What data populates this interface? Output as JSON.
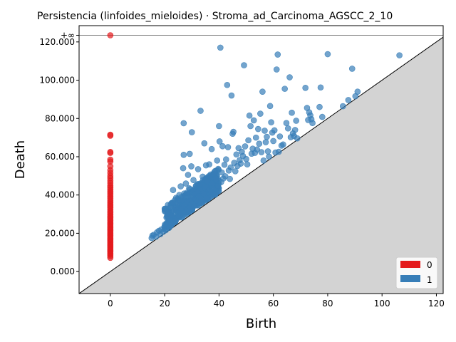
{
  "chart_data": {
    "type": "scatter",
    "title": "Persistencia (linfoides_mieloides) · Stroma_ad_Carcinoma_AGSCC_2_10",
    "xlabel": "Birth",
    "ylabel": "Death",
    "xlim": [
      -11.5,
      122.5
    ],
    "ylim": [
      -11.5,
      128.5
    ],
    "x_ticks": [
      0,
      20,
      40,
      60,
      80,
      100,
      120
    ],
    "x_tick_labels": [
      "0",
      "20",
      "40",
      "60",
      "80",
      "100",
      "120"
    ],
    "y_ticks": [
      0,
      20,
      40,
      60,
      80,
      100,
      120
    ],
    "y_tick_labels": [
      "0.000",
      "20.000",
      "40.000",
      "60.000",
      "80.000",
      "100.000",
      "120.000"
    ],
    "infinity_level": 128.5,
    "infinity_label": "+∞",
    "diagonal": true,
    "legend_position": "bottom-right",
    "series": [
      {
        "name": "0",
        "color": "#e41a1c",
        "points": [
          [
            0,
            7.2
          ],
          [
            0,
            8.1
          ],
          [
            0,
            8.9
          ],
          [
            0,
            9.6
          ],
          [
            0,
            10.3
          ],
          [
            0,
            11.0
          ],
          [
            0,
            11.7
          ],
          [
            0,
            12.4
          ],
          [
            0,
            13.1
          ],
          [
            0,
            13.8
          ],
          [
            0,
            14.5
          ],
          [
            0,
            15.2
          ],
          [
            0,
            15.9
          ],
          [
            0,
            16.6
          ],
          [
            0,
            17.3
          ],
          [
            0,
            18.0
          ],
          [
            0,
            18.7
          ],
          [
            0,
            19.4
          ],
          [
            0,
            20.1
          ],
          [
            0,
            20.8
          ],
          [
            0,
            21.5
          ],
          [
            0,
            22.2
          ],
          [
            0,
            22.9
          ],
          [
            0,
            23.6
          ],
          [
            0,
            24.3
          ],
          [
            0,
            25.0
          ],
          [
            0,
            25.8
          ],
          [
            0,
            26.6
          ],
          [
            0,
            27.4
          ],
          [
            0,
            28.2
          ],
          [
            0,
            29.0
          ],
          [
            0,
            29.8
          ],
          [
            0,
            30.7
          ],
          [
            0,
            31.6
          ],
          [
            0,
            32.5
          ],
          [
            0,
            33.4
          ],
          [
            0,
            34.3
          ],
          [
            0,
            35.2
          ],
          [
            0,
            36.1
          ],
          [
            0,
            37.0
          ],
          [
            0,
            38.0
          ],
          [
            0,
            39.0
          ],
          [
            0,
            40.0
          ],
          [
            0,
            41.0
          ],
          [
            0,
            42.0
          ],
          [
            0,
            43.0
          ],
          [
            0,
            44.0
          ],
          [
            0,
            45.0
          ],
          [
            0,
            46.2
          ],
          [
            0,
            47.5
          ],
          [
            0,
            48.8
          ],
          [
            0,
            50.0
          ],
          [
            0,
            51.5
          ],
          [
            0,
            53.0
          ],
          [
            0,
            55.0
          ],
          [
            0,
            57.5
          ],
          [
            0,
            58.5
          ],
          [
            0,
            62.0
          ],
          [
            0,
            62.5
          ],
          [
            0,
            71.0
          ],
          [
            0,
            71.5
          ]
        ],
        "infinite_points": [
          0
        ]
      },
      {
        "name": "1",
        "color": "#377eb8",
        "points": [
          [
            15.2,
            17.5
          ],
          [
            15.5,
            18.8
          ],
          [
            16.0,
            19.2
          ],
          [
            16.8,
            18.2
          ],
          [
            17.2,
            20.5
          ],
          [
            17.9,
            21.3
          ],
          [
            18.4,
            19.5
          ],
          [
            18.8,
            22.0
          ],
          [
            19.5,
            20.8
          ],
          [
            19.9,
            23.4
          ],
          [
            20.4,
            21.6
          ],
          [
            20.8,
            25.5
          ],
          [
            21.0,
            30.4
          ],
          [
            21.2,
            34.8
          ],
          [
            21.6,
            22.8
          ],
          [
            21.9,
            27.3
          ],
          [
            22.3,
            24.0
          ],
          [
            22.5,
            29.5
          ],
          [
            22.8,
            36.0
          ],
          [
            23.1,
            42.6
          ],
          [
            23.0,
            25.2
          ],
          [
            23.4,
            31.8
          ],
          [
            23.8,
            26.4
          ],
          [
            24.0,
            33.5
          ],
          [
            24.2,
            38.5
          ],
          [
            24.6,
            27.8
          ],
          [
            24.9,
            35.6
          ],
          [
            25.2,
            29.2
          ],
          [
            25.4,
            40.0
          ],
          [
            25.6,
            31.0
          ],
          [
            25.9,
            44.5
          ],
          [
            26.2,
            32.6
          ],
          [
            26.4,
            37.2
          ],
          [
            26.6,
            28.6
          ],
          [
            26.8,
            54.0
          ],
          [
            27.0,
            61.0
          ],
          [
            27.0,
            77.5
          ],
          [
            27.2,
            34.2
          ],
          [
            27.4,
            39.6
          ],
          [
            27.6,
            30.8
          ],
          [
            27.8,
            46.0
          ],
          [
            28.0,
            35.8
          ],
          [
            28.2,
            41.2
          ],
          [
            28.4,
            32.2
          ],
          [
            28.6,
            50.5
          ],
          [
            28.8,
            37.6
          ],
          [
            29.0,
            43.5
          ],
          [
            29.2,
            61.5
          ],
          [
            29.4,
            33.8
          ],
          [
            29.6,
            39.0
          ],
          [
            29.8,
            55.0
          ],
          [
            30.0,
            72.8
          ],
          [
            30.2,
            36.4
          ],
          [
            30.4,
            42.0
          ],
          [
            30.6,
            47.8
          ],
          [
            30.8,
            34.6
          ],
          [
            31.0,
            40.4
          ],
          [
            31.2,
            38.2
          ],
          [
            31.5,
            44.8
          ],
          [
            31.8,
            36.8
          ],
          [
            32.0,
            41.6
          ],
          [
            32.3,
            53.5
          ],
          [
            32.6,
            39.4
          ],
          [
            32.9,
            45.6
          ],
          [
            33.2,
            84.0
          ],
          [
            33.4,
            37.8
          ],
          [
            33.7,
            43.0
          ],
          [
            34.0,
            49.6
          ],
          [
            34.3,
            40.8
          ],
          [
            34.6,
            67.0
          ],
          [
            34.9,
            44.2
          ],
          [
            35.2,
            55.5
          ],
          [
            35.5,
            38.6
          ],
          [
            35.8,
            47.0
          ],
          [
            36.1,
            42.4
          ],
          [
            36.4,
            56.0
          ],
          [
            36.7,
            50.0
          ],
          [
            37.0,
            41.8
          ],
          [
            37.3,
            64.0
          ],
          [
            37.6,
            45.4
          ],
          [
            38.0,
            43.6
          ],
          [
            38.3,
            52.0
          ],
          [
            38.6,
            40.2
          ],
          [
            39.0,
            48.2
          ],
          [
            39.3,
            58.0
          ],
          [
            39.6,
            44.6
          ],
          [
            40.0,
            76.0
          ],
          [
            40.2,
            68.0
          ],
          [
            40.5,
            117.0
          ],
          [
            40.8,
            46.8
          ],
          [
            41.0,
            51.8
          ],
          [
            41.3,
            65.5
          ],
          [
            41.6,
            48.6
          ],
          [
            42.0,
            55.8
          ],
          [
            42.3,
            49.8
          ],
          [
            42.6,
            58.6
          ],
          [
            43.0,
            97.5
          ],
          [
            43.3,
            65.0
          ],
          [
            43.6,
            52.8
          ],
          [
            44.0,
            48.4
          ],
          [
            44.3,
            54.4
          ],
          [
            44.6,
            92.0
          ],
          [
            45.0,
            72.0
          ],
          [
            45.3,
            73.0
          ],
          [
            45.6,
            56.8
          ],
          [
            46.0,
            52.4
          ],
          [
            46.4,
            61.2
          ],
          [
            46.8,
            55.2
          ],
          [
            47.2,
            64.5
          ],
          [
            47.6,
            58.2
          ],
          [
            48.0,
            56.4
          ],
          [
            48.4,
            62.6
          ],
          [
            48.8,
            60.4
          ],
          [
            49.2,
            107.8
          ],
          [
            49.6,
            65.4
          ],
          [
            50.0,
            58.8
          ],
          [
            50.4,
            56.0
          ],
          [
            50.8,
            68.6
          ],
          [
            51.2,
            81.5
          ],
          [
            51.6,
            76.0
          ],
          [
            52.0,
            61.6
          ],
          [
            52.4,
            64.2
          ],
          [
            52.8,
            79.0
          ],
          [
            53.2,
            62.0
          ],
          [
            53.6,
            70.0
          ],
          [
            54.0,
            63.8
          ],
          [
            54.4,
            74.5
          ],
          [
            54.8,
            66.8
          ],
          [
            55.2,
            82.5
          ],
          [
            55.6,
            62.4
          ],
          [
            56.0,
            94.0
          ],
          [
            56.4,
            58.0
          ],
          [
            56.8,
            73.6
          ],
          [
            57.2,
            67.6
          ],
          [
            57.6,
            70.4
          ],
          [
            58.0,
            62.8
          ],
          [
            58.4,
            60.0
          ],
          [
            58.8,
            86.5
          ],
          [
            59.2,
            78.0
          ],
          [
            59.6,
            72.6
          ],
          [
            60.0,
            68.2
          ],
          [
            60.4,
            73.8
          ],
          [
            60.8,
            62.2
          ],
          [
            61.2,
            105.6
          ],
          [
            61.6,
            113.4
          ],
          [
            62.0,
            62.6
          ],
          [
            62.4,
            70.6
          ],
          [
            63.0,
            65.8
          ],
          [
            63.6,
            66.4
          ],
          [
            64.2,
            95.5
          ],
          [
            64.8,
            77.6
          ],
          [
            65.4,
            74.8
          ],
          [
            66.0,
            101.5
          ],
          [
            66.4,
            70.2
          ],
          [
            66.8,
            83.0
          ],
          [
            67.2,
            72.2
          ],
          [
            67.6,
            70.8
          ],
          [
            68.0,
            74.0
          ],
          [
            68.4,
            78.8
          ],
          [
            68.8,
            69.6
          ],
          [
            71.8,
            96.0
          ],
          [
            72.4,
            85.5
          ],
          [
            72.8,
            79.2
          ],
          [
            73.2,
            83.2
          ],
          [
            73.6,
            81.6
          ],
          [
            74.0,
            79.6
          ],
          [
            74.4,
            77.6
          ],
          [
            77.0,
            86.0
          ],
          [
            77.4,
            96.2
          ],
          [
            78.0,
            80.8
          ],
          [
            80.0,
            113.6
          ],
          [
            85.6,
            86.4
          ],
          [
            87.6,
            89.6
          ],
          [
            89.0,
            106.0
          ],
          [
            90.2,
            91.6
          ],
          [
            91.0,
            94.0
          ],
          [
            106.4,
            113.0
          ]
        ],
        "dense_core": {
          "x_range": [
            20,
            40
          ],
          "y_offset_range": [
            2,
            14
          ]
        }
      }
    ]
  }
}
